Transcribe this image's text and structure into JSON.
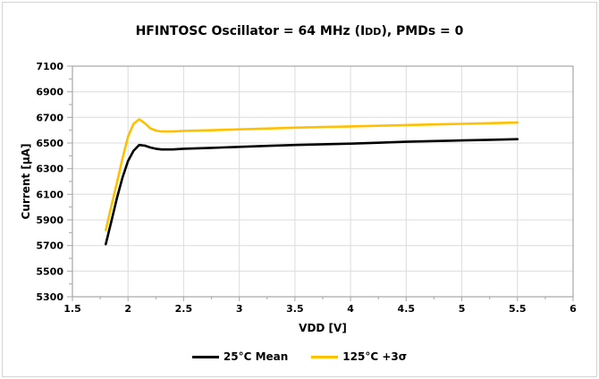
{
  "figure": {
    "title_part1": "HFINTOSC Oscillator = 64 MHz (I",
    "title_subscript": "DD",
    "title_part2": "), PMDs = 0"
  },
  "colors": {
    "background": "#FFFFFF",
    "frame_border": "#D4D4D4",
    "gridline": "#DCDCDC",
    "axis": "#A6A6A6",
    "series_black": "#000000",
    "series_gold": "#FFC000"
  },
  "chart_data": {
    "type": "line",
    "title": "HFINTOSC Oscillator = 64 MHz (IDD), PMDs = 0",
    "xlabel": "VDD [V]",
    "ylabel": "Current [µA]",
    "xlim": [
      1.5,
      6
    ],
    "ylim": [
      5300,
      7100
    ],
    "x_ticks": [
      1.5,
      2,
      2.5,
      3,
      3.5,
      4,
      4.5,
      5,
      5.5,
      6
    ],
    "x_tick_labels": [
      "1.5",
      "2",
      "2.5",
      "3",
      "3.5",
      "4",
      "4.5",
      "5",
      "5.5",
      "6"
    ],
    "y_ticks": [
      5300,
      5500,
      5700,
      5900,
      6100,
      6300,
      6500,
      6700,
      6900,
      7100
    ],
    "x_minor_step": 0.25,
    "y_minor_step": 100,
    "grid": true,
    "legend_position": "bottom",
    "x": [
      1.8,
      1.85,
      1.9,
      1.95,
      2.0,
      2.05,
      2.1,
      2.15,
      2.2,
      2.25,
      2.3,
      2.4,
      2.5,
      2.75,
      3.0,
      3.25,
      3.5,
      3.75,
      4.0,
      4.25,
      4.5,
      4.75,
      5.0,
      5.25,
      5.5
    ],
    "series": [
      {
        "name": "25°C Mean",
        "color": "#000000",
        "values": [
          5710,
          5890,
          6070,
          6230,
          6360,
          6440,
          6485,
          6480,
          6465,
          6455,
          6450,
          6450,
          6455,
          6462,
          6470,
          6478,
          6485,
          6490,
          6495,
          6502,
          6510,
          6515,
          6520,
          6525,
          6530
        ]
      },
      {
        "name": "125°C +3σ",
        "color": "#FFC000",
        "values": [
          5820,
          6010,
          6190,
          6380,
          6550,
          6650,
          6685,
          6655,
          6615,
          6598,
          6590,
          6590,
          6595,
          6600,
          6607,
          6613,
          6620,
          6625,
          6630,
          6635,
          6640,
          6645,
          6650,
          6655,
          6660
        ]
      }
    ]
  }
}
